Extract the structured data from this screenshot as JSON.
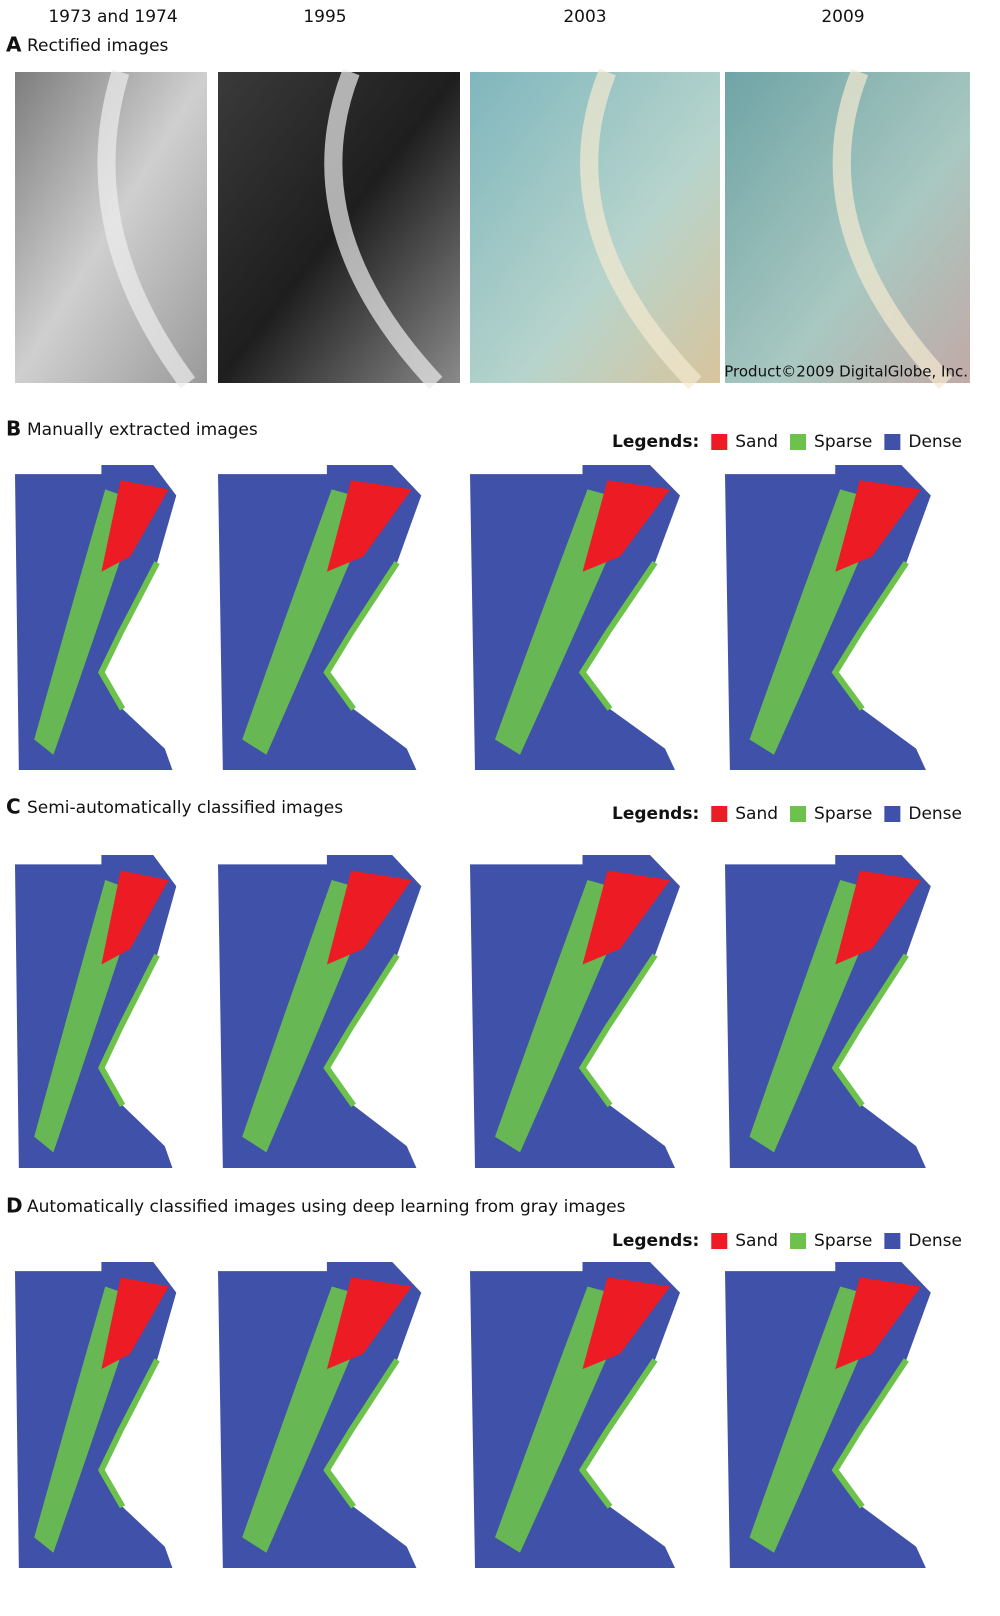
{
  "columns": [
    "1973 and 1974",
    "1995",
    "2003",
    "2009"
  ],
  "panels": [
    {
      "letter": "A",
      "title": "Rectified images",
      "credit": "Product©2009 DigitalGlobe, Inc."
    },
    {
      "letter": "B",
      "title": "Manually extracted images",
      "legend": {
        "label": "Legends:",
        "items": [
          {
            "name": "Sand",
            "color": "#ed1c24"
          },
          {
            "name": "Sparse",
            "color": "#6cc24a"
          },
          {
            "name": "Dense",
            "color": "#3f51a8"
          }
        ]
      }
    },
    {
      "letter": "C",
      "title": "Semi-automatically classified images",
      "legend": {
        "label": "Legends:",
        "items": [
          {
            "name": "Sand",
            "color": "#ed1c24"
          },
          {
            "name": "Sparse",
            "color": "#6cc24a"
          },
          {
            "name": "Dense",
            "color": "#3f51a8"
          }
        ]
      }
    },
    {
      "letter": "D",
      "title": "Automatically classified images using deep learning from gray images",
      "legend": {
        "label": "Legends:",
        "items": [
          {
            "name": "Sand",
            "color": "#ed1c24"
          },
          {
            "name": "Sparse",
            "color": "#6cc24a"
          },
          {
            "name": "Dense",
            "color": "#3f51a8"
          }
        ]
      }
    }
  ]
}
